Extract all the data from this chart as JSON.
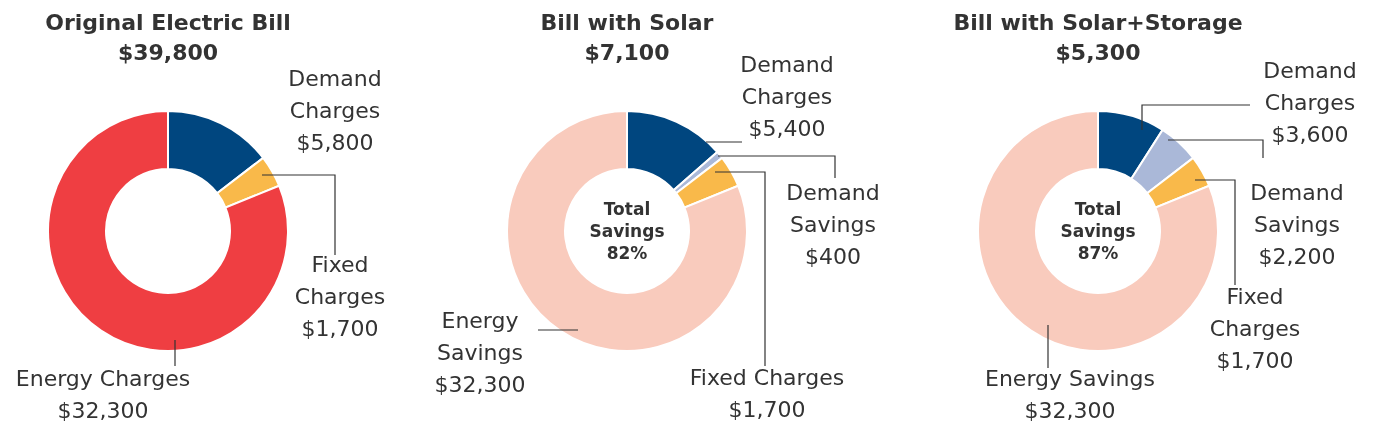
{
  "chart_data": [
    {
      "type": "donut",
      "title": "Original Electric Bill",
      "subtitle": "$39,800",
      "categories": [
        "Demand Charges",
        "Fixed Charges",
        "Energy Charges"
      ],
      "values": [
        5800,
        1700,
        32300
      ],
      "value_labels": [
        "$5,800",
        "$1,700",
        "$32,300"
      ],
      "colors": [
        "#00467f",
        "#f9b94a",
        "#ef3e42"
      ]
    },
    {
      "type": "donut",
      "title": "Bill with Solar",
      "subtitle": "$7,100",
      "categories": [
        "Demand Charges",
        "Demand Savings",
        "Fixed Charges",
        "Energy Savings"
      ],
      "values": [
        5400,
        400,
        1700,
        32300
      ],
      "value_labels": [
        "$5,400",
        "$400",
        "$1,700",
        "$32,300"
      ],
      "colors": [
        "#00467f",
        "#aab8d8",
        "#f9b94a",
        "#f9cbbd"
      ],
      "annotations": [
        "Total Savings 82%"
      ]
    },
    {
      "type": "donut",
      "title": "Bill with Solar+Storage",
      "subtitle": "$5,300",
      "categories": [
        "Demand Charges",
        "Demand Savings",
        "Fixed Charges",
        "Energy Savings"
      ],
      "values": [
        3600,
        2200,
        1700,
        32300
      ],
      "value_labels": [
        "$3,600",
        "$2,200",
        "$1,700",
        "$32,300"
      ],
      "colors": [
        "#00467f",
        "#aab8d8",
        "#f9b94a",
        "#f9cbbd"
      ],
      "annotations": [
        "Total Savings 87%"
      ]
    }
  ]
}
